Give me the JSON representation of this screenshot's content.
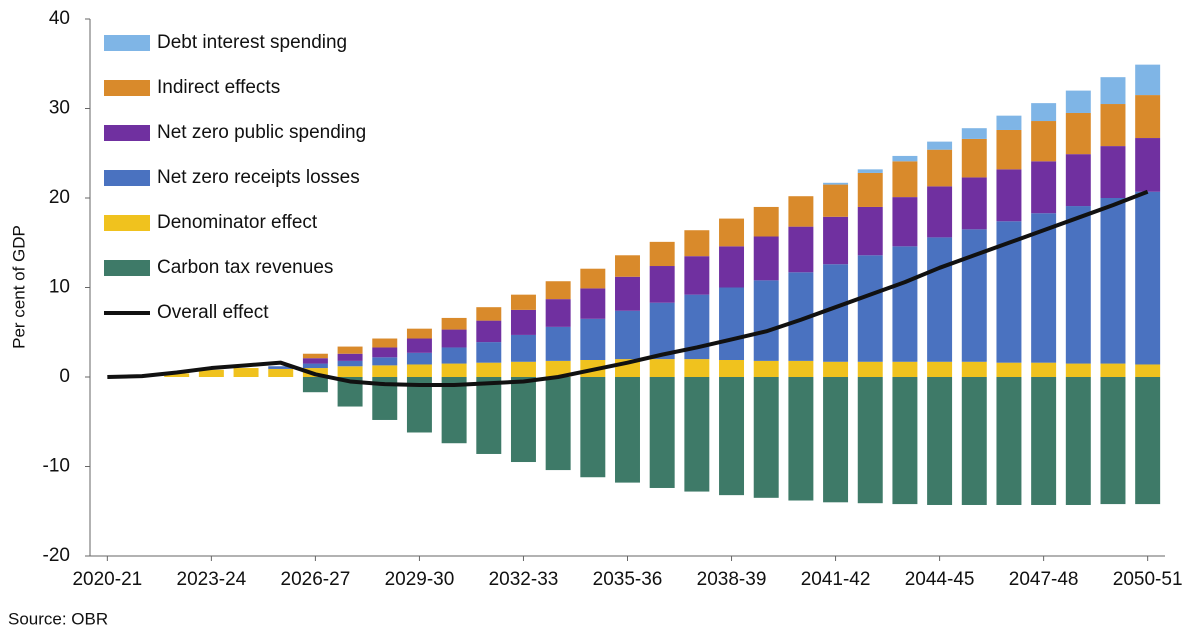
{
  "chart_data": {
    "type": "bar",
    "stacked": true,
    "y_label": "Per cent of GDP",
    "source": "Source: OBR",
    "categories": [
      "2020-21",
      null,
      null,
      "2023-24",
      null,
      null,
      "2026-27",
      null,
      null,
      "2029-30",
      null,
      null,
      "2032-33",
      null,
      null,
      "2035-36",
      null,
      null,
      "2038-39",
      null,
      null,
      "2041-42",
      null,
      null,
      "2044-45",
      null,
      null,
      "2047-48",
      null,
      null,
      "2050-51"
    ],
    "ylim": [
      -20,
      40
    ],
    "yticks": [
      -20,
      -10,
      0,
      10,
      20,
      30,
      40
    ],
    "grid": false,
    "legend": "top-left",
    "series": [
      {
        "name": "Debt interest spending",
        "color": "#7fb5e6",
        "values": [
          0,
          0,
          0,
          0,
          0,
          0,
          0,
          0,
          0,
          0,
          0,
          0,
          0,
          0,
          0,
          0,
          0,
          0,
          0,
          0,
          0,
          0.2,
          0.4,
          0.6,
          0.9,
          1.2,
          1.6,
          2.0,
          2.5,
          3.0,
          3.4
        ]
      },
      {
        "name": "Indirect effects",
        "color": "#d98a2b",
        "values": [
          0,
          0,
          0,
          0,
          0,
          0,
          0.5,
          0.8,
          1.0,
          1.1,
          1.3,
          1.5,
          1.7,
          2.0,
          2.2,
          2.4,
          2.7,
          2.9,
          3.1,
          3.3,
          3.4,
          3.6,
          3.8,
          4.0,
          4.1,
          4.3,
          4.4,
          4.5,
          4.6,
          4.7,
          4.8
        ]
      },
      {
        "name": "Net zero public spending",
        "color": "#7030a0",
        "values": [
          0,
          0,
          0,
          0,
          0,
          0,
          0.6,
          0.8,
          1.1,
          1.6,
          2.0,
          2.4,
          2.8,
          3.1,
          3.4,
          3.8,
          4.1,
          4.3,
          4.6,
          4.9,
          5.1,
          5.3,
          5.4,
          5.5,
          5.7,
          5.8,
          5.8,
          5.8,
          5.8,
          5.8,
          6.0
        ]
      },
      {
        "name": "Net zero receipts losses",
        "color": "#4a72c0",
        "values": [
          0,
          0,
          0,
          0,
          0,
          0.3,
          0.5,
          0.6,
          0.9,
          1.3,
          1.8,
          2.3,
          3.0,
          3.8,
          4.6,
          5.4,
          6.3,
          7.2,
          8.1,
          9.0,
          9.9,
          10.9,
          11.9,
          12.9,
          13.9,
          14.8,
          15.8,
          16.7,
          17.6,
          18.5,
          19.3
        ]
      },
      {
        "name": "Denominator effect",
        "color": "#f0c21e",
        "values": [
          0,
          0,
          0.4,
          0.8,
          1.0,
          0.9,
          1.0,
          1.2,
          1.3,
          1.4,
          1.5,
          1.6,
          1.7,
          1.8,
          1.9,
          2.0,
          2.0,
          2.0,
          1.9,
          1.8,
          1.8,
          1.7,
          1.7,
          1.7,
          1.7,
          1.7,
          1.6,
          1.6,
          1.5,
          1.5,
          1.4
        ]
      },
      {
        "name": "Carbon tax revenues",
        "color": "#3e7a68",
        "values": [
          0,
          0,
          0,
          0,
          0,
          0,
          -1.7,
          -3.3,
          -4.8,
          -6.2,
          -7.4,
          -8.6,
          -9.5,
          -10.4,
          -11.2,
          -11.8,
          -12.4,
          -12.8,
          -13.2,
          -13.5,
          -13.8,
          -14.0,
          -14.1,
          -14.2,
          -14.3,
          -14.3,
          -14.3,
          -14.3,
          -14.3,
          -14.2,
          -14.2
        ]
      },
      {
        "name": "Overall effect",
        "color": "#111111",
        "type": "line",
        "values": [
          0,
          0.1,
          0.5,
          1.0,
          1.3,
          1.6,
          0.3,
          -0.5,
          -0.8,
          -0.9,
          -0.9,
          -0.7,
          -0.5,
          0.0,
          0.8,
          1.6,
          2.5,
          3.3,
          4.2,
          5.1,
          6.4,
          7.8,
          9.2,
          10.6,
          12.2,
          13.6,
          15.0,
          16.4,
          17.8,
          19.2,
          20.7
        ]
      }
    ]
  }
}
